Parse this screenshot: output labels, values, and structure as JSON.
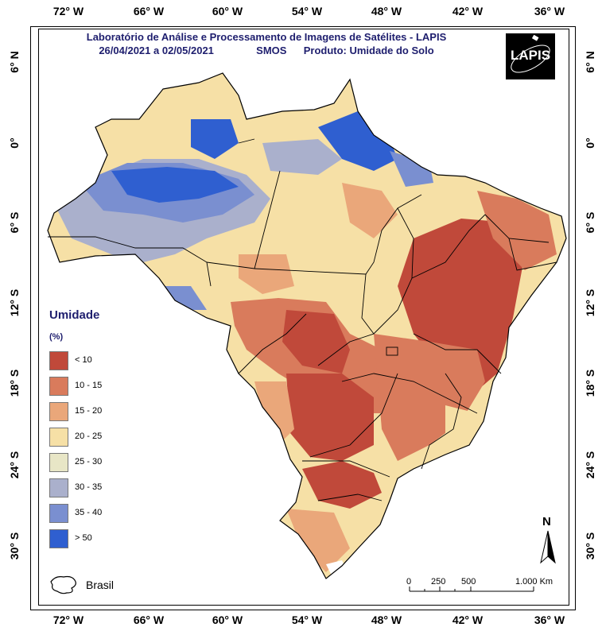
{
  "header": {
    "line1": "Laboratório de Análise e Processamento de Imagens de Satélites - LAPIS",
    "date_range": "26/04/2021  a  02/05/2021",
    "sensor": "SMOS",
    "product": "Produto: Umidade do Solo"
  },
  "logo": {
    "text": "LAPIS"
  },
  "axes": {
    "longitude_top": [
      "72° W",
      "66° W",
      "60° W",
      "54° W",
      "48° W",
      "42° W",
      "36° W"
    ],
    "longitude_bottom": [
      "72° W",
      "66° W",
      "60° W",
      "54° W",
      "48° W",
      "42° W",
      "36° W"
    ],
    "latitude_left": [
      "6° N",
      "0°",
      "6° S",
      "12° S",
      "18° S",
      "24° S",
      "30° S"
    ],
    "latitude_right": [
      "6° N",
      "0°",
      "6° S",
      "12° S",
      "18° S",
      "24° S",
      "30° S"
    ]
  },
  "legend": {
    "title": "Umidade",
    "unit": "(%)",
    "items": [
      {
        "label": "< 10",
        "color": "#c0493a"
      },
      {
        "label": "10 - 15",
        "color": "#d97b5c"
      },
      {
        "label": "15 - 20",
        "color": "#eaa77a"
      },
      {
        "label": "20 - 25",
        "color": "#f6e0a6"
      },
      {
        "label": "25 - 30",
        "color": "#e8e6c6"
      },
      {
        "label": "30 - 35",
        "color": "#aab0cc"
      },
      {
        "label": "35 - 40",
        "color": "#7a8fd0"
      },
      {
        "label": "> 50",
        "color": "#2f5fd0"
      }
    ]
  },
  "map_legend": {
    "label": "Brasil"
  },
  "scale_bar": {
    "labels": [
      "0",
      "250",
      "500",
      "1.000 Km"
    ]
  },
  "north_arrow": {
    "label": "N"
  }
}
